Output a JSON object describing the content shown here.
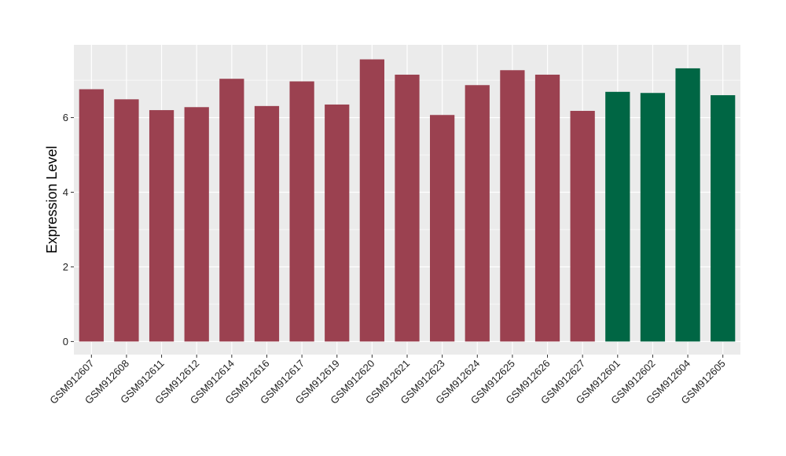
{
  "chart_data": {
    "type": "bar",
    "ylabel": "Expression Level",
    "xlabel": "",
    "ylim": [
      -0.35,
      7.95
    ],
    "yticks": [
      0,
      2,
      4,
      6
    ],
    "grid": true,
    "background": "#ebebeb",
    "categories": [
      "GSM912607",
      "GSM912608",
      "GSM912611",
      "GSM912612",
      "GSM912614",
      "GSM912616",
      "GSM912617",
      "GSM912619",
      "GSM912620",
      "GSM912621",
      "GSM912623",
      "GSM912624",
      "GSM912625",
      "GSM912626",
      "GSM912627",
      "GSM912601",
      "GSM912602",
      "GSM912604",
      "GSM912605"
    ],
    "values": [
      6.76,
      6.49,
      6.2,
      6.28,
      7.04,
      6.31,
      6.97,
      6.35,
      7.56,
      7.15,
      6.07,
      6.87,
      7.27,
      7.15,
      6.18,
      6.69,
      6.66,
      7.32,
      6.6
    ],
    "colors": [
      "#9b4150",
      "#9b4150",
      "#9b4150",
      "#9b4150",
      "#9b4150",
      "#9b4150",
      "#9b4150",
      "#9b4150",
      "#9b4150",
      "#9b4150",
      "#9b4150",
      "#9b4150",
      "#9b4150",
      "#9b4150",
      "#9b4150",
      "#006644",
      "#006644",
      "#006644",
      "#006644"
    ]
  }
}
